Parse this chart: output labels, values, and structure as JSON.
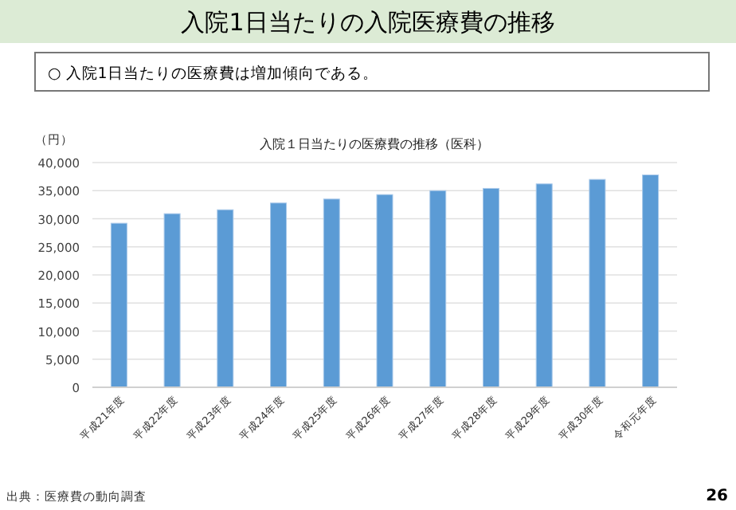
{
  "chart_data": {
    "type": "bar",
    "title": "入院1日当たりの入院医療費の推移",
    "subtitle": "入院１日当たりの医療費の推移（医科）",
    "ylabel": "（円）",
    "annotations": [
      "○ 入院1日当たりの医療費は増加傾向である。",
      "出典：医療費の動向調査",
      "26"
    ],
    "categories": [
      "平成21年度",
      "平成22年度",
      "平成23年度",
      "平成24年度",
      "平成25年度",
      "平成26年度",
      "平成27年度",
      "平成28年度",
      "平成29年度",
      "平成30年度",
      "令和元年度"
    ],
    "values": [
      29200,
      30900,
      31600,
      32800,
      33500,
      34300,
      35000,
      35400,
      36200,
      37000,
      37800
    ],
    "color": "#5b9bd5",
    "ylim": [
      0,
      40000
    ],
    "yticks": [
      0,
      {
        "value": 5000,
        "label": "5,000"
      },
      {
        "value": 10000,
        "label": "10,000"
      },
      {
        "value": 15000,
        "label": "15,000"
      },
      {
        "value": 20000,
        "label": "20,000"
      },
      {
        "value": 25000,
        "label": "25,000"
      },
      {
        "value": 30000,
        "label": "30,000"
      },
      {
        "value": 35000,
        "label": "35,000"
      },
      {
        "value": 40000,
        "label": "40,000"
      }
    ],
    "grid": "y"
  }
}
